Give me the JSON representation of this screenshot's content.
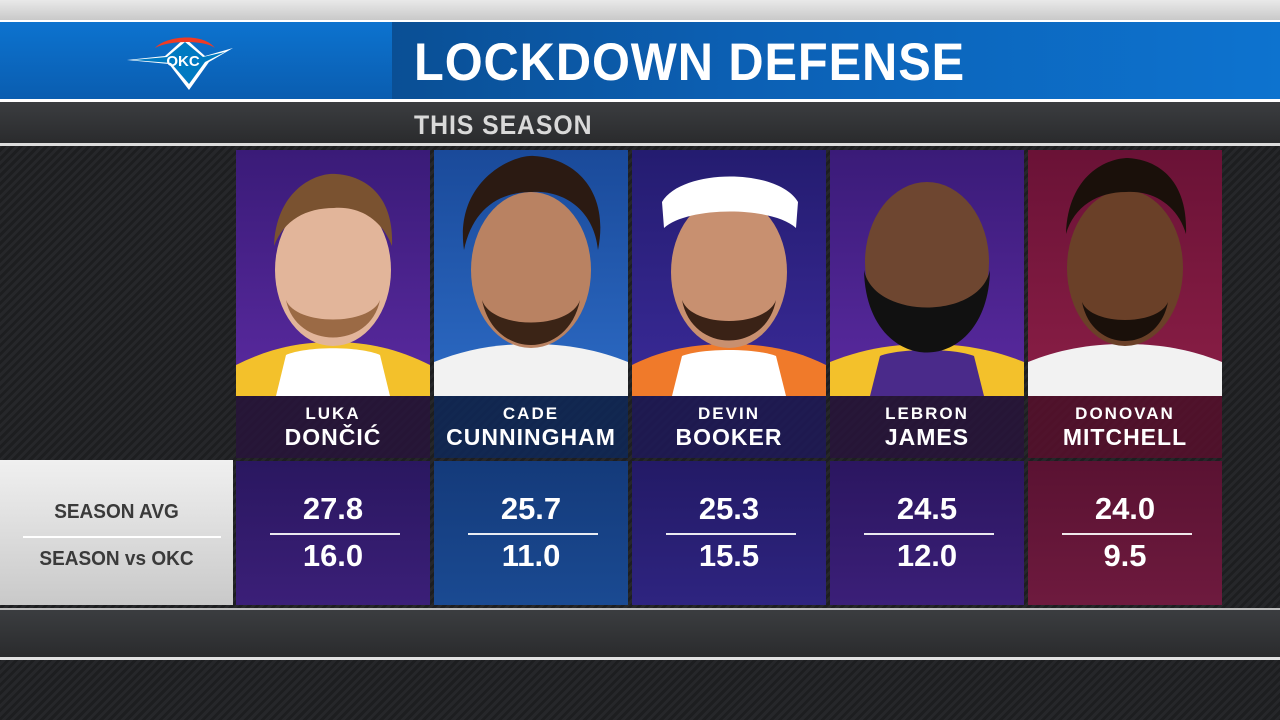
{
  "header": {
    "title": "LOCKDOWN DEFENSE",
    "subtitle": "THIS SEASON",
    "logo_text": "OKC"
  },
  "row_labels": {
    "season_avg": "SEASON AVG",
    "season_vs_okc": "SEASON vs OKC"
  },
  "players": [
    {
      "first": "LUKA",
      "last": "DONČIĆ",
      "season_avg": "27.8",
      "season_vs_okc": "16.0",
      "team_color": "#3b1e6e",
      "stat_bg": "#2a1760"
    },
    {
      "first": "CADE",
      "last": "CUNNINGHAM",
      "season_avg": "25.7",
      "season_vs_okc": "11.0",
      "team_color": "#1d4a8f",
      "stat_bg": "#143a7a"
    },
    {
      "first": "DEVIN",
      "last": "BOOKER",
      "season_avg": "25.3",
      "season_vs_okc": "15.5",
      "team_color": "#2a1e6e",
      "stat_bg": "#231a66"
    },
    {
      "first": "LEBRON",
      "last": "JAMES",
      "season_avg": "24.5",
      "season_vs_okc": "12.0",
      "team_color": "#3b1e6e",
      "stat_bg": "#2b1660"
    },
    {
      "first": "DONOVAN",
      "last": "MITCHELL",
      "season_avg": "24.0",
      "season_vs_okc": "9.5",
      "team_color": "#7a1a3c",
      "stat_bg": "#5a1232"
    }
  ],
  "colors": {
    "header_blue": "#0d73cf",
    "okc_orange": "#ef3b24",
    "okc_blue": "#007ac1"
  }
}
